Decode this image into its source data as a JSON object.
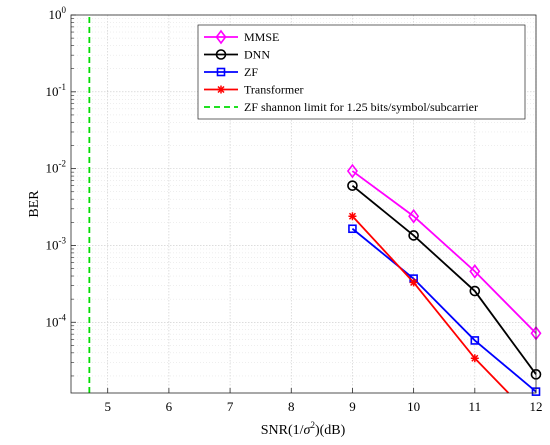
{
  "chart_data": {
    "type": "line",
    "ylabel": "BER",
    "xlabel_parts": {
      "prefix": "SNR(1/",
      "sigma": "σ",
      "exp": "2",
      "suffix": ")(dB)"
    },
    "x_ticks": [
      5,
      6,
      7,
      8,
      9,
      10,
      11,
      12
    ],
    "y_ticks": [
      {
        "base": "10",
        "exp": "0",
        "value": 1
      },
      {
        "base": "10",
        "exp": "-1",
        "value": 0.1
      },
      {
        "base": "10",
        "exp": "-2",
        "value": 0.01
      },
      {
        "base": "10",
        "exp": "-3",
        "value": 0.001
      },
      {
        "base": "10",
        "exp": "-4",
        "value": 0.0001
      }
    ],
    "xlim": [
      4.4,
      12
    ],
    "ylim": [
      1.2e-05,
      1
    ],
    "y_scale": "log",
    "grid": true,
    "legend_position": "top-right",
    "series": [
      {
        "name": "MMSE",
        "color": "#ff00ff",
        "marker": "diamond",
        "x": [
          9,
          10,
          11,
          12
        ],
        "y": [
          0.0093,
          0.0024,
          0.00046,
          7.2e-05
        ]
      },
      {
        "name": "DNN",
        "color": "#000000",
        "marker": "circle",
        "x": [
          9,
          10,
          11,
          12
        ],
        "y": [
          0.006,
          0.00135,
          0.000255,
          2.1e-05
        ]
      },
      {
        "name": "ZF",
        "color": "#0000ff",
        "marker": "square",
        "x": [
          9,
          10,
          11,
          12
        ],
        "y": [
          0.00165,
          0.00037,
          5.8e-05,
          1.25e-05
        ]
      },
      {
        "name": "Transformer",
        "color": "#ff0000",
        "marker": "star",
        "x": [
          9,
          10,
          11,
          11.55
        ],
        "y": [
          0.0024,
          0.00033,
          3.4e-05,
          1.2e-05
        ]
      },
      {
        "name": "ZF shannon limit for 1.25 bits/symbol/subcarrier",
        "color": "#00dd00",
        "marker": "none",
        "dashed": true,
        "x": [
          4.7,
          4.7
        ],
        "y": [
          1.2e-05,
          1
        ]
      }
    ]
  }
}
